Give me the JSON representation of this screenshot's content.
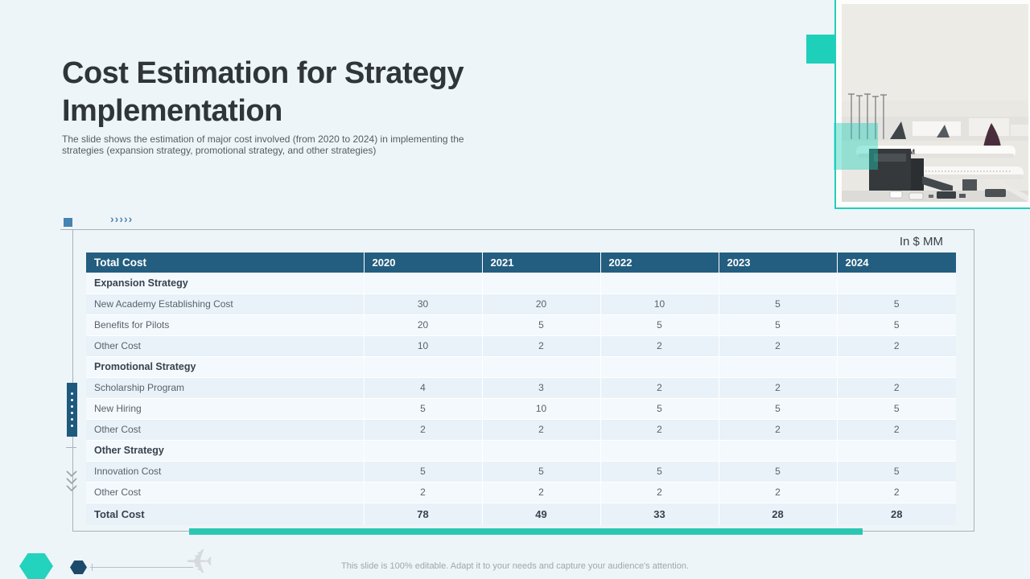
{
  "title": "Cost Estimation for Strategy Implementation",
  "subtitle": "The slide shows the estimation of major cost involved (from 2020 to 2024) in implementing the strategies (expansion strategy, promotional strategy, and other strategies)",
  "units_label": "In $ MM",
  "footer_note": "This slide is 100% editable. Adapt it to your needs and capture your audience's attention.",
  "decor": {
    "chevrons": "›››››"
  },
  "photo": {
    "plane_text": "SKYTEAM"
  },
  "colors": {
    "background": "#eef5f9",
    "header_blue": "#235e80",
    "teal_accent": "#1ed0ba",
    "teal_bar": "#2cc7b2",
    "steel_blue": "#4e86ae",
    "navy": "#1d4a6b"
  },
  "chart_data": {
    "type": "table",
    "title": "Cost Estimation for Strategy Implementation",
    "unit": "In $ MM",
    "columns": [
      "Total Cost",
      "2020",
      "2021",
      "2022",
      "2023",
      "2024"
    ],
    "rows": [
      {
        "label": "Expansion Strategy",
        "type": "section",
        "values": [
          "",
          "",
          "",
          "",
          ""
        ]
      },
      {
        "label": "New Academy Establishing Cost",
        "type": "data",
        "values": [
          "30",
          "20",
          "10",
          "5",
          "5"
        ]
      },
      {
        "label": "Benefits for Pilots",
        "type": "data",
        "values": [
          "20",
          "5",
          "5",
          "5",
          "5"
        ]
      },
      {
        "label": "Other Cost",
        "type": "data",
        "values": [
          "10",
          "2",
          "2",
          "2",
          "2"
        ]
      },
      {
        "label": "Promotional Strategy",
        "type": "section",
        "values": [
          "",
          "",
          "",
          "",
          ""
        ]
      },
      {
        "label": "Scholarship Program",
        "type": "data",
        "values": [
          "4",
          "3",
          "2",
          "2",
          "2"
        ]
      },
      {
        "label": "New Hiring",
        "type": "data",
        "values": [
          "5",
          "10",
          "5",
          "5",
          "5"
        ]
      },
      {
        "label": "Other Cost",
        "type": "data",
        "values": [
          "2",
          "2",
          "2",
          "2",
          "2"
        ]
      },
      {
        "label": "Other Strategy",
        "type": "section",
        "values": [
          "",
          "",
          "",
          "",
          ""
        ]
      },
      {
        "label": "Innovation Cost",
        "type": "data",
        "values": [
          "5",
          "5",
          "5",
          "5",
          "5"
        ]
      },
      {
        "label": "Other Cost",
        "type": "data",
        "values": [
          "2",
          "2",
          "2",
          "2",
          "2"
        ]
      },
      {
        "label": "Total Cost",
        "type": "total",
        "values": [
          "78",
          "49",
          "33",
          "28",
          "28"
        ]
      }
    ]
  }
}
